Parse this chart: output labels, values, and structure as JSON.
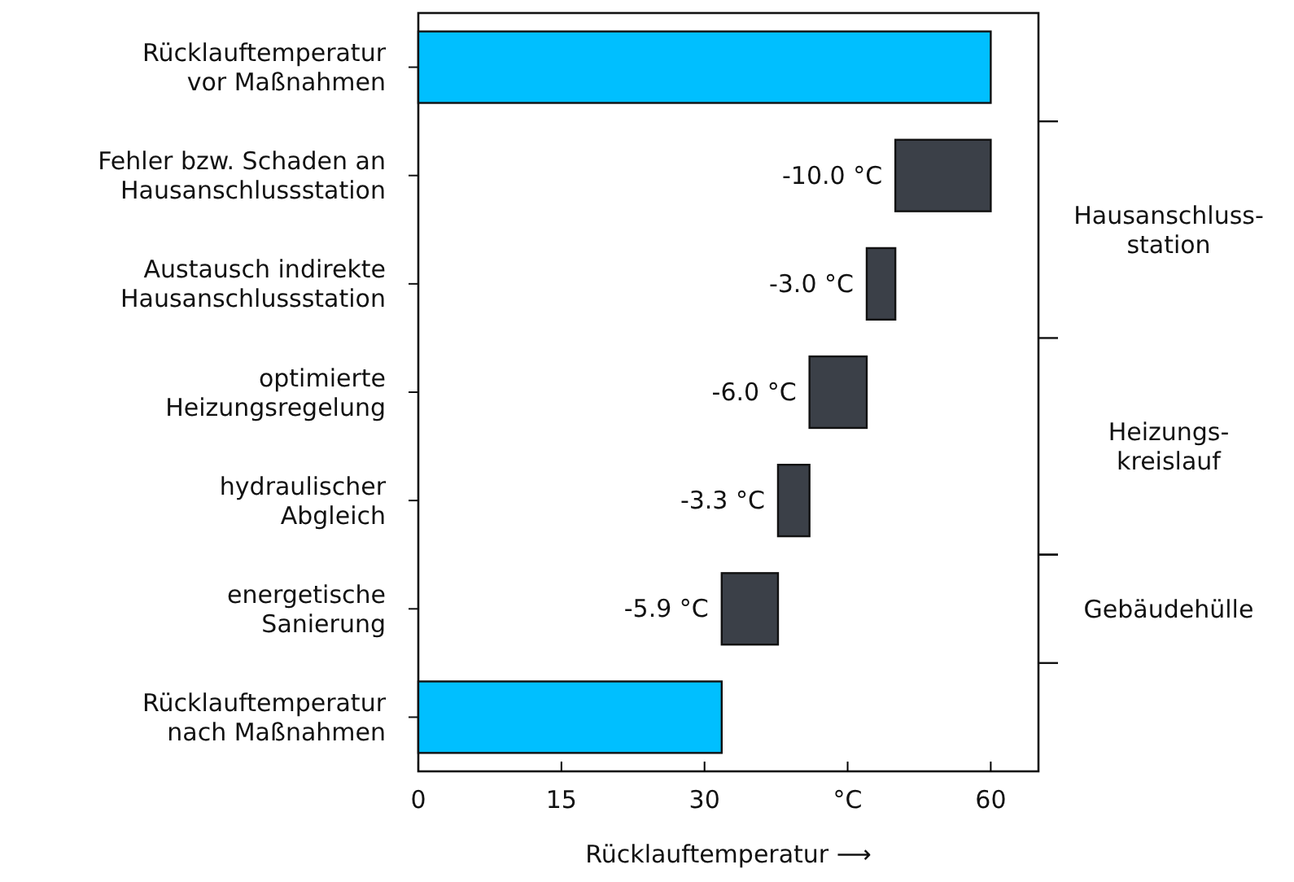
{
  "chart_data": {
    "type": "bar",
    "orientation": "horizontal",
    "categories": [
      "Rücklauftemperatur\nvor Maßnahmen",
      "Fehler bzw. Schaden an\nHausanschlussstation",
      "Austausch indirekte\nHausanschlussstation",
      "optimierte\nHeizungsregelung",
      "hydraulischer\nAbgleich",
      "energetische\nSanierung",
      "Rücklauftemperatur\nnach Maßnahmen"
    ],
    "values": [
      60,
      -10,
      -3,
      -6,
      -3.3,
      -5.9,
      31.8
    ],
    "base": [
      0,
      60,
      50,
      47,
      41,
      37.7,
      0
    ],
    "colors": [
      "#00bfff",
      "#3b4048",
      "#3b4048",
      "#3b4048",
      "#3b4048",
      "#3b4048",
      "#00bfff"
    ],
    "value_labels": [
      null,
      "-10.0 °C",
      "-3.0 °C",
      "-6.0 °C",
      "-3.3 °C",
      "-5.9 °C",
      null
    ],
    "xlim": [
      0,
      65
    ],
    "xticks": [
      0,
      15,
      30,
      {
        "value": 45,
        "label": "°C"
      },
      60
    ],
    "xlabel": "Rücklauftemperatur ⟶",
    "annotations": [
      "Hausanschluss-\nstation",
      "Heizungs-\nkreislauf",
      "Gebäudehülle"
    ],
    "grid": false
  }
}
